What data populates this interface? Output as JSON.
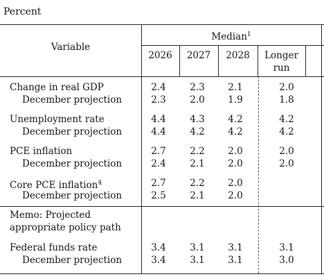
{
  "unit_label": "Percent",
  "header": {
    "variable": "Variable",
    "median": "Median",
    "median_note": "1",
    "years": [
      "2026",
      "2027",
      "2028"
    ],
    "longer_run": [
      "Longer",
      "run"
    ]
  },
  "rows": {
    "gdp": {
      "label": "Change in real GDP",
      "values": [
        "2.4",
        "2.3",
        "2.1",
        "2.0"
      ]
    },
    "gdp_dec": {
      "label": "December projection",
      "values": [
        "2.3",
        "2.0",
        "1.9",
        "1.8"
      ]
    },
    "unemp": {
      "label": "Unemployment rate",
      "values": [
        "4.4",
        "4.3",
        "4.2",
        "4.2"
      ]
    },
    "unemp_dec": {
      "label": "December projection",
      "values": [
        "4.4",
        "4.2",
        "4.2",
        "4.2"
      ]
    },
    "pce": {
      "label": "PCE inflation",
      "values": [
        "2.7",
        "2.2",
        "2.0",
        "2.0"
      ]
    },
    "pce_dec": {
      "label": "December projection",
      "values": [
        "2.4",
        "2.1",
        "2.0",
        "2.0"
      ]
    },
    "core": {
      "label": "Core PCE inflation",
      "note": "4",
      "values": [
        "2.7",
        "2.2",
        "2.0",
        ""
      ]
    },
    "core_dec": {
      "label": "December projection",
      "values": [
        "2.5",
        "2.1",
        "2.0",
        ""
      ]
    },
    "memo": {
      "line1": "Memo: Projected",
      "line2": "appropriate policy path"
    },
    "ffr": {
      "label": "Federal funds rate",
      "values": [
        "3.4",
        "3.1",
        "3.1",
        "3.1"
      ]
    },
    "ffr_dec": {
      "label": "December projection",
      "values": [
        "3.4",
        "3.1",
        "3.1",
        "3.0"
      ]
    }
  }
}
